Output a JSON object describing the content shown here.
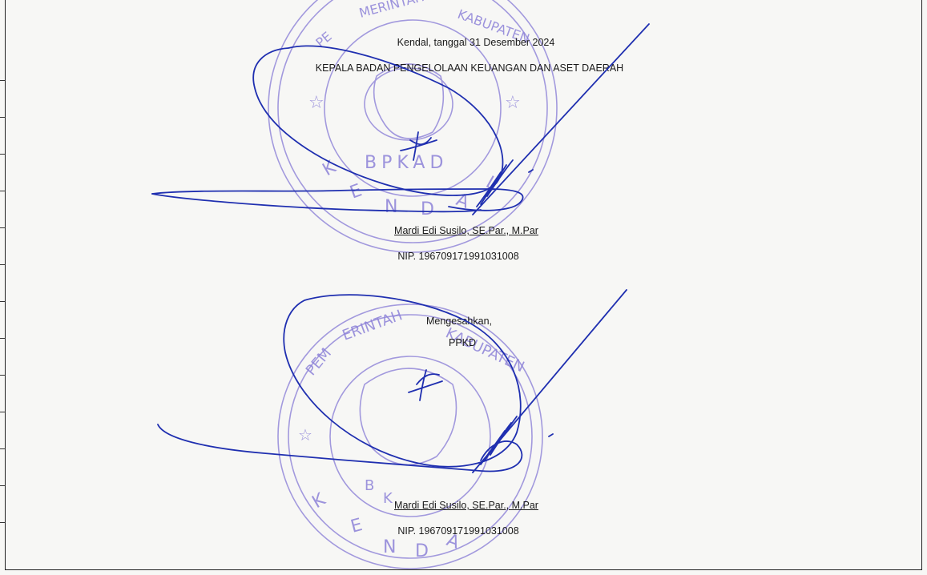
{
  "signature_block_1": {
    "place_date": "Kendal, tanggal 31 Desember 2024",
    "position": "KEPALA BADAN PENGELOLAAN KEUANGAN DAN ASET DAERAH",
    "name": "Mardi Edi Susilo, SE.Par., M.Par",
    "nip": "NIP. 196709171991031008",
    "stamp_text": "PEMERINTAH KABUPATEN",
    "stamp_center": "BPKAD",
    "stamp_bottom": "KENDAL"
  },
  "signature_block_2": {
    "label": "Mengesahkan,",
    "position": "PPKD",
    "name": "Mardi Edi Susilo, SE.Par., M.Par",
    "nip": "NIP. 196709171991031008",
    "stamp_text": "PEMERINTAH KABUPATEN",
    "stamp_bottom": "KENDAL"
  },
  "colors": {
    "stamp": "#8d82d8",
    "signature": "#1f2fb0",
    "text": "#1a1a1a"
  }
}
